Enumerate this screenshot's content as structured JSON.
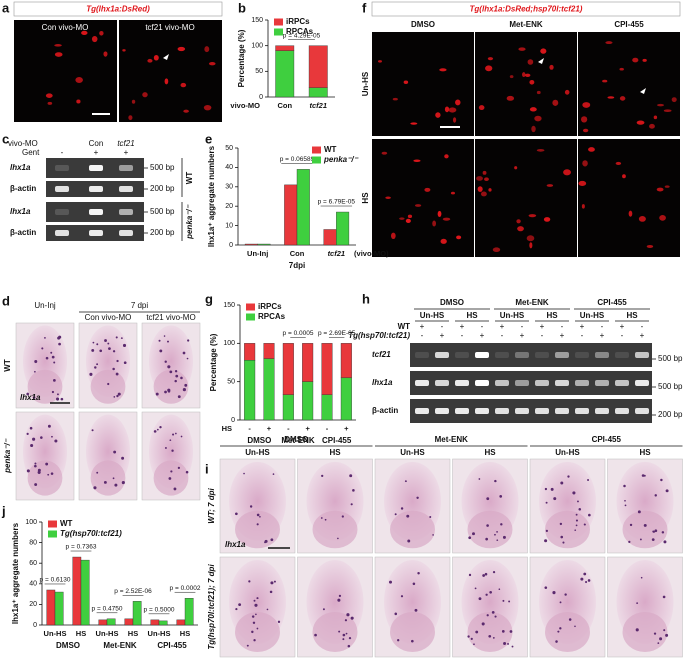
{
  "panel_letters": [
    "a",
    "b",
    "c",
    "d",
    "e",
    "f",
    "g",
    "h",
    "i",
    "j"
  ],
  "a": {
    "title": "Tg(lhx1a:DsRed)",
    "images": [
      "Con vivo-MO",
      "tcf21 vivo-MO"
    ]
  },
  "c": {
    "header": "vivo-MO",
    "lanes": [
      "Con",
      "tcf21"
    ],
    "treatment": "Gent",
    "treatment_signs": [
      "-",
      "+",
      "+"
    ],
    "rows": [
      "lhx1a",
      "β-actin",
      "lhx1a",
      "β-actin"
    ],
    "sizes": [
      "500 bp",
      "200 bp",
      "500 bp",
      "200 bp"
    ],
    "genotypes": [
      "WT",
      "penka⁻/⁻"
    ]
  },
  "d": {
    "columns": [
      "Un-Inj",
      "Con vivo-MO",
      "tcf21 vivo-MO"
    ],
    "time": "7 dpi",
    "rows": [
      "WT",
      "penka⁻/⁻"
    ],
    "probe": "lhx1a"
  },
  "f": {
    "title": "Tg(lhx1a:DsRed;hsp70l:tcf21)",
    "columns": [
      "DMSO",
      "Met-ENK",
      "CPI-455"
    ],
    "rows": [
      "Un-HS",
      "HS"
    ]
  },
  "h": {
    "groups": [
      "DMSO",
      "Met-ENK",
      "CPI-455"
    ],
    "conditions": [
      "Un-HS",
      "HS",
      "Un-HS",
      "HS",
      "Un-HS",
      "HS"
    ],
    "genotype_rows": [
      {
        "label": "WT",
        "signs": [
          "+",
          "-",
          "+",
          "-",
          "+",
          "-",
          "+",
          "-",
          "+",
          "-",
          "+",
          "-"
        ]
      },
      {
        "label": "Tg(hsp70l:tcf21)",
        "signs": [
          "-",
          "+",
          "-",
          "+",
          "-",
          "+",
          "-",
          "+",
          "-",
          "+",
          "-",
          "+"
        ]
      }
    ],
    "rows": [
      "tcf21",
      "lhx1a",
      "β-actin"
    ],
    "sizes": [
      "500 bp",
      "500 bp",
      "200 bp"
    ]
  },
  "i": {
    "groups": [
      "DMSO",
      "Met-ENK",
      "CPI-455"
    ],
    "conditions": [
      "Un-HS",
      "HS",
      "Un-HS",
      "HS",
      "Un-HS",
      "HS"
    ],
    "rows": [
      "WT; 7 dpi",
      "Tg(hsp70l:tcf21); 7 dpi"
    ],
    "probe": "lhx1a"
  },
  "chart_data": [
    {
      "type": "bar",
      "stacked": true,
      "categories": [
        "Con",
        "tcf21"
      ],
      "category_label": "vivo-MO",
      "series": [
        {
          "name": "iRPCs",
          "color": "#e8383b",
          "values": [
            10,
            82
          ]
        },
        {
          "name": "RPCAs",
          "color": "#3fcf3f",
          "values": [
            90,
            18
          ]
        }
      ],
      "ylabel": "Percentage (%)",
      "ylim": [
        0,
        150
      ],
      "yticks": [
        0,
        50,
        100,
        150
      ],
      "p_values": [
        "p = 4.29E-05"
      ],
      "legend": "top-left"
    },
    {
      "type": "bar",
      "stacked": false,
      "categories": [
        "Un-Inj",
        "Con",
        "tcf21"
      ],
      "category_note": "(vivo-MO)",
      "xlabel": "7dpi",
      "series": [
        {
          "name": "WT",
          "color": "#e8383b",
          "values": [
            0.5,
            31,
            8
          ]
        },
        {
          "name": "penka⁻/⁻",
          "color": "#3fcf3f",
          "values": [
            0.5,
            39,
            17
          ]
        }
      ],
      "ylabel": "lhx1a⁺ aggregate numbers",
      "ylim": [
        0,
        50
      ],
      "yticks": [
        0,
        10,
        20,
        30,
        40,
        50
      ],
      "p_values": [
        null,
        "p = 0.06589",
        "p = 6.79E-05"
      ],
      "legend": "top-right"
    },
    {
      "type": "bar",
      "stacked": true,
      "categories": [
        "-",
        "+",
        "-",
        "+",
        "-",
        "+"
      ],
      "category_label": "HS",
      "groups": [
        "DMSO",
        "Met-ENK",
        "CPI-455"
      ],
      "series": [
        {
          "name": "iRPCs",
          "color": "#e8383b",
          "values": [
            22,
            20,
            67,
            50,
            67,
            45
          ]
        },
        {
          "name": "RPCAs",
          "color": "#3fcf3f",
          "values": [
            78,
            80,
            33,
            50,
            33,
            55
          ]
        }
      ],
      "ylabel": "Percentage (%)",
      "ylim": [
        0,
        150
      ],
      "yticks": [
        0,
        50,
        100,
        150
      ],
      "p_values": [
        null,
        "p = 0.0005",
        "p = 2.69E-05"
      ],
      "legend": "top-left"
    },
    {
      "type": "bar",
      "stacked": false,
      "categories": [
        "Un-HS",
        "HS",
        "Un-HS",
        "HS",
        "Un-HS",
        "HS"
      ],
      "groups": [
        "DMSO",
        "Met-ENK",
        "CPI-455"
      ],
      "series": [
        {
          "name": "WT",
          "color": "#e8383b",
          "values": [
            34,
            66,
            5,
            6,
            5,
            5
          ]
        },
        {
          "name": "Tg(hsp70l:tcf21)",
          "color": "#3fcf3f",
          "values": [
            32,
            63,
            6,
            23,
            4,
            26
          ]
        }
      ],
      "ylabel": "lhx1a⁺ aggregate numbers",
      "ylim": [
        0,
        100
      ],
      "yticks": [
        0,
        20,
        40,
        60,
        80,
        100
      ],
      "p_values": [
        "p = 0.6130",
        "p = 0.7363",
        "p = 0.4750",
        "p = 2.52E-06",
        "p = 0.5000",
        "p = 0.0002"
      ],
      "legend": "top-left"
    }
  ]
}
